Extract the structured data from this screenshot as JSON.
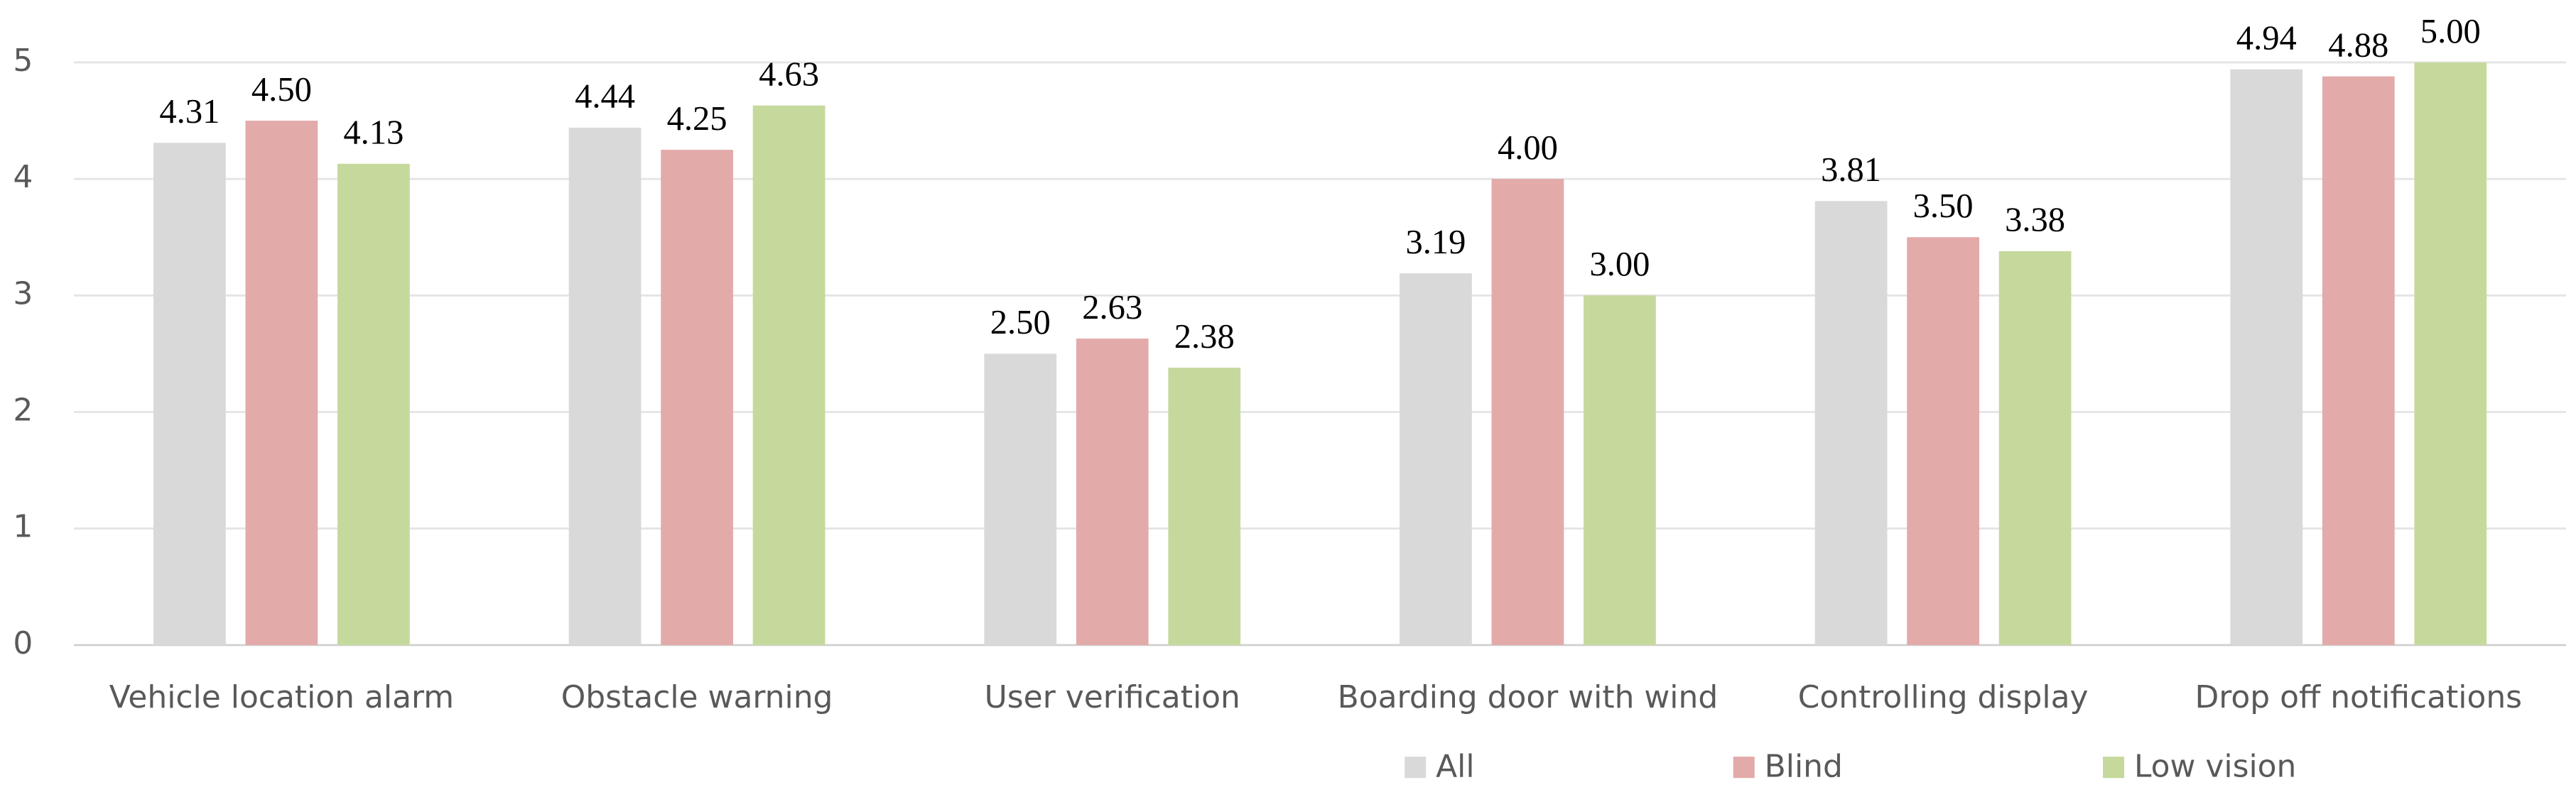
{
  "chart_data": {
    "type": "bar",
    "categories": [
      "Vehicle location alarm",
      "Obstacle warning",
      "User verification",
      "Boarding door with wind",
      "Controlling display",
      "Drop off notifications"
    ],
    "series": [
      {
        "name": "All",
        "color": "#d9d9d9",
        "values": [
          4.31,
          4.44,
          2.5,
          3.19,
          3.81,
          4.94
        ],
        "value_labels": [
          "4.31",
          "4.44",
          "2.50",
          "3.19",
          "3.81",
          "4.94"
        ]
      },
      {
        "name": "Blind",
        "color": "#e3aaaa",
        "values": [
          4.5,
          4.25,
          2.63,
          4.0,
          3.5,
          4.88
        ],
        "value_labels": [
          "4.50",
          "4.25",
          "2.63",
          "4.00",
          "3.50",
          "4.88"
        ]
      },
      {
        "name": "Low vision",
        "color": "#c5d99c",
        "values": [
          4.13,
          4.63,
          2.38,
          3.0,
          3.38,
          5.0
        ],
        "value_labels": [
          "4.13",
          "4.63",
          "2.38",
          "3.00",
          "3.38",
          "5.00"
        ]
      }
    ],
    "ylim": [
      0,
      5
    ],
    "yticks": [
      0,
      1,
      2,
      3,
      4,
      5
    ],
    "grid": true,
    "legend": "bottom"
  }
}
